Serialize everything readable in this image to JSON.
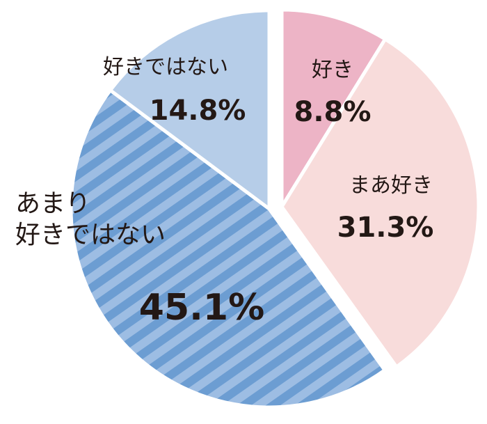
{
  "chart_data": {
    "type": "pie",
    "categories": [
      "好き",
      "まあ好き",
      "あまり好きではない",
      "好きではない"
    ],
    "values": [
      8.8,
      31.3,
      45.1,
      14.8
    ],
    "value_labels": [
      "8.8%",
      "31.3%",
      "45.1%",
      "14.8%"
    ],
    "colors": [
      "#edb4c6",
      "#f8dcdb",
      "#9dbde3",
      "#b6cde8"
    ],
    "hatch": {
      "index": 2,
      "color": "#6c9dd2"
    }
  }
}
